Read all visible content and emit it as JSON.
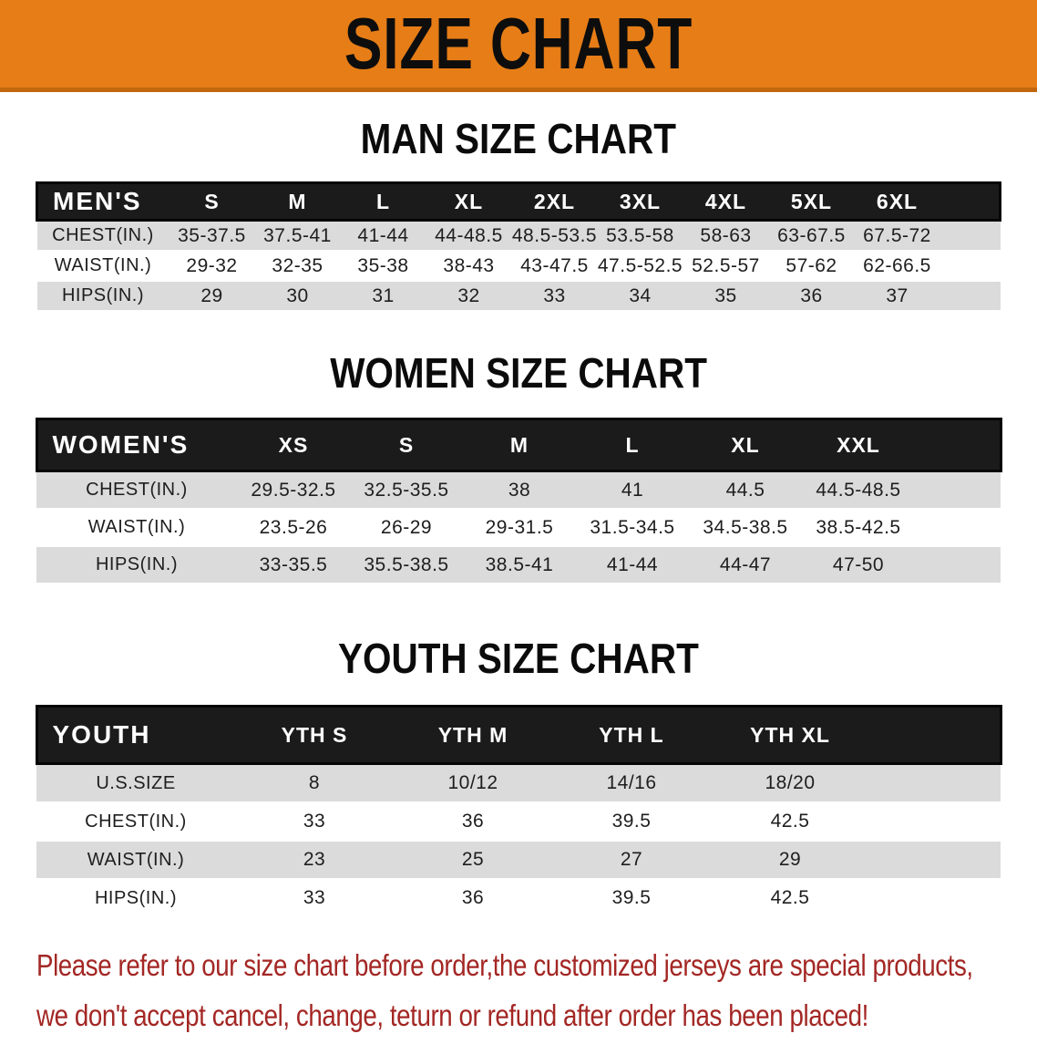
{
  "banner": {
    "title": "SIZE CHART"
  },
  "sections": [
    {
      "heading": "MAN SIZE CHART",
      "header_label": "MEN'S",
      "columns": [
        "S",
        "M",
        "L",
        "XL",
        "2XL",
        "3XL",
        "4XL",
        "5XL",
        "6XL"
      ],
      "rows": [
        {
          "label": "CHEST(IN.)",
          "values": [
            "35-37.5",
            "37.5-41",
            "41-44",
            "44-48.5",
            "48.5-53.5",
            "53.5-58",
            "58-63",
            "63-67.5",
            "67.5-72"
          ]
        },
        {
          "label": "WAIST(IN.)",
          "values": [
            "29-32",
            "32-35",
            "35-38",
            "38-43",
            "43-47.5",
            "47.5-52.5",
            "52.5-57",
            "57-62",
            "62-66.5"
          ]
        },
        {
          "label": "HIPS(IN.)",
          "values": [
            "29",
            "30",
            "31",
            "32",
            "33",
            "34",
            "35",
            "36",
            "37"
          ]
        }
      ]
    },
    {
      "heading": "WOMEN SIZE CHART",
      "header_label": "WOMEN'S",
      "columns": [
        "XS",
        "S",
        "M",
        "L",
        "XL",
        "XXL"
      ],
      "rows": [
        {
          "label": "CHEST(IN.)",
          "values": [
            "29.5-32.5",
            "32.5-35.5",
            "38",
            "41",
            "44.5",
            "44.5-48.5"
          ]
        },
        {
          "label": "WAIST(IN.)",
          "values": [
            "23.5-26",
            "26-29",
            "29-31.5",
            "31.5-34.5",
            "34.5-38.5",
            "38.5-42.5"
          ]
        },
        {
          "label": "HIPS(IN.)",
          "values": [
            "33-35.5",
            "35.5-38.5",
            "38.5-41",
            "41-44",
            "44-47",
            "47-50"
          ]
        }
      ]
    },
    {
      "heading": "YOUTH SIZE CHART",
      "header_label": "YOUTH",
      "columns": [
        "YTH S",
        "YTH M",
        "YTH L",
        "YTH XL"
      ],
      "rows": [
        {
          "label": "U.S.SIZE",
          "values": [
            "8",
            "10/12",
            "14/16",
            "18/20"
          ]
        },
        {
          "label": "CHEST(IN.)",
          "values": [
            "33",
            "36",
            "39.5",
            "42.5"
          ]
        },
        {
          "label": "WAIST(IN.)",
          "values": [
            "23",
            "25",
            "27",
            "29"
          ]
        },
        {
          "label": "HIPS(IN.)",
          "values": [
            "33",
            "36",
            "39.5",
            "42.5"
          ]
        }
      ]
    }
  ],
  "footer": {
    "line1": "Please refer to our size chart before order,the customized jerseys are special products,",
    "line2": "we don't accept cancel, change, teturn or refund after order has been placed!"
  },
  "colors": {
    "banner_bg": "#E67D17",
    "banner_edge": "#C2660E",
    "header_bar": "#1b1b1b",
    "stripe_row": "#DBDBDB",
    "footer_text": "#A32724"
  }
}
